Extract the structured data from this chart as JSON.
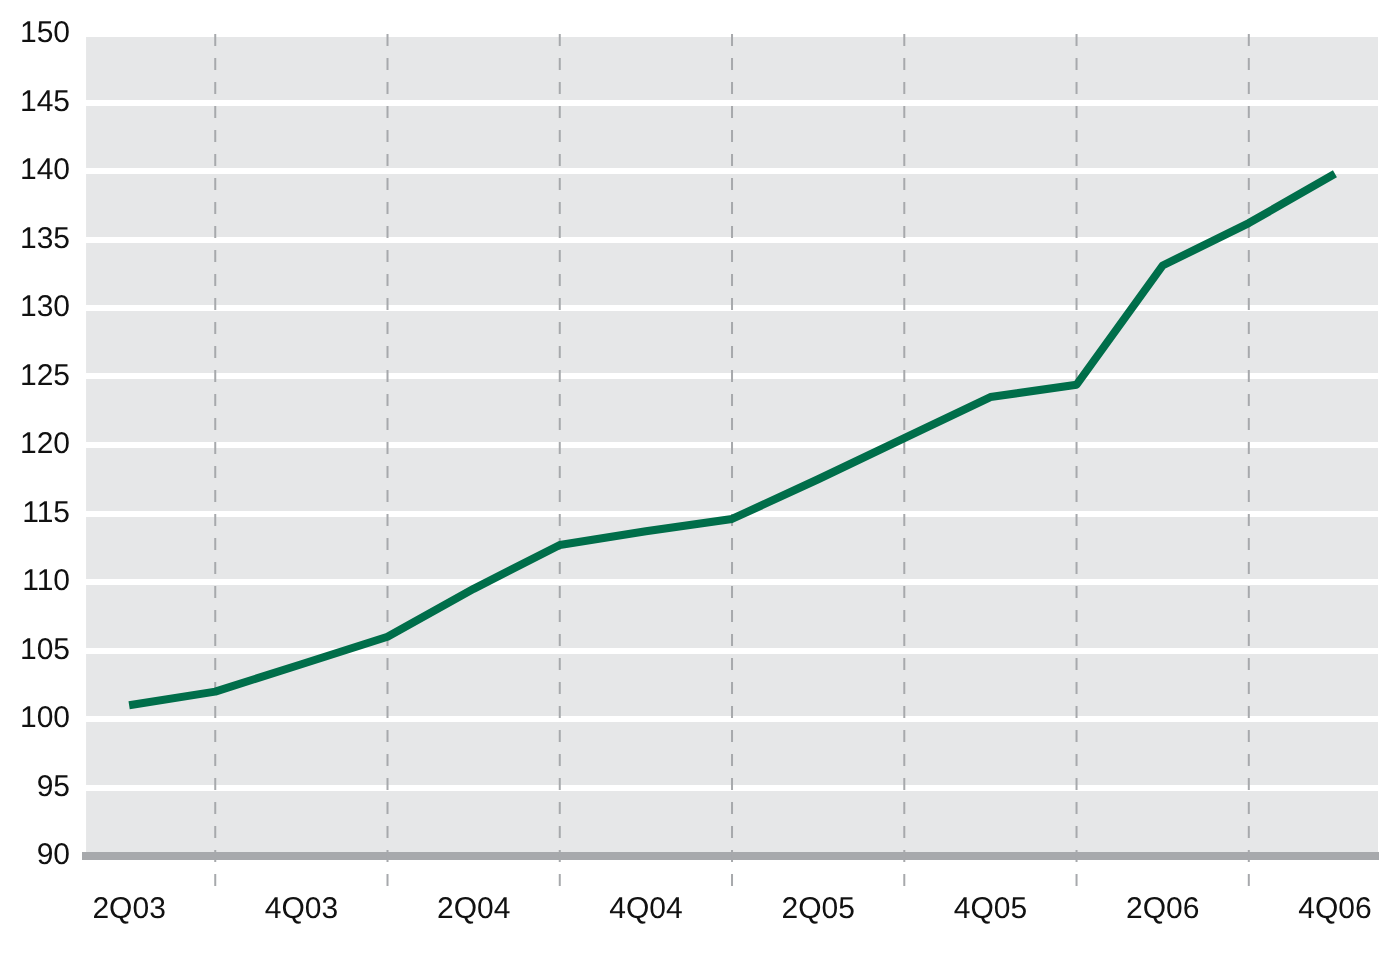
{
  "chart_data": {
    "type": "line",
    "categories": [
      "2Q03",
      null,
      "4Q03",
      null,
      "2Q04",
      null,
      "4Q04",
      null,
      "2Q05",
      null,
      "4Q05",
      null,
      "2Q06",
      null,
      "4Q06"
    ],
    "series": [
      {
        "color": "#006e4a",
        "values": [
          101,
          102,
          104,
          106,
          109.5,
          112.7,
          113.7,
          114.6,
          117.5,
          120.5,
          123.5,
          124.4,
          133.1,
          136.2,
          139.8
        ]
      }
    ],
    "ylim": [
      90,
      150
    ],
    "yticks": [
      90,
      95,
      100,
      105,
      110,
      115,
      120,
      125,
      130,
      135,
      140,
      145,
      150
    ],
    "grid": true,
    "legend": false,
    "marker": "none",
    "line_style": "solid"
  }
}
